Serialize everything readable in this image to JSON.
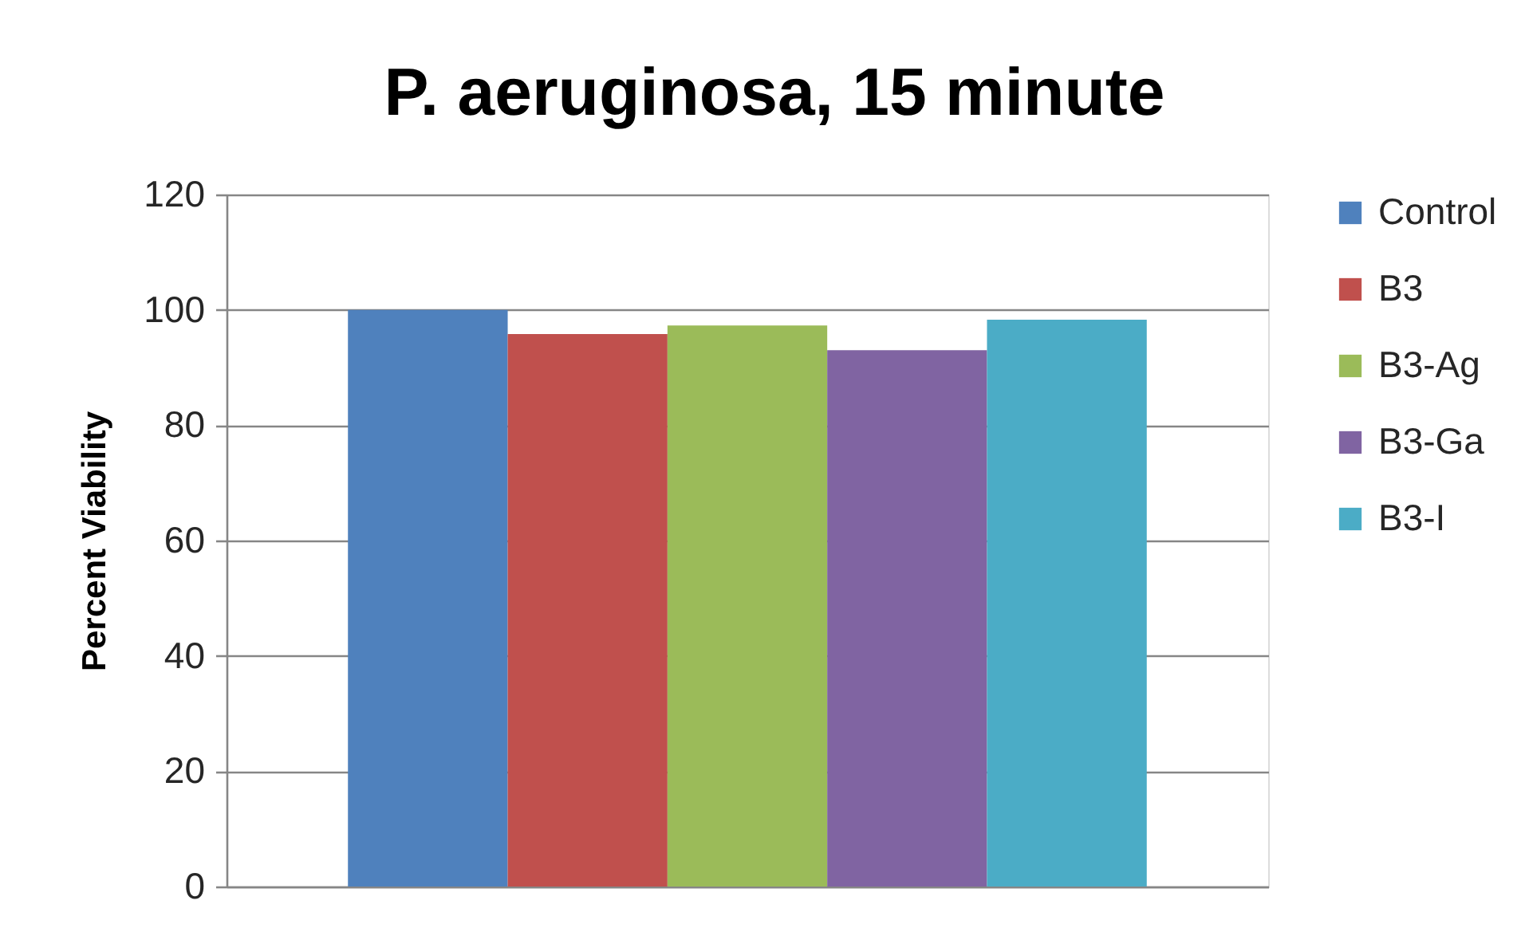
{
  "chart_data": {
    "type": "bar",
    "title": "P. aeruginosa, 15 minute",
    "ylabel": "Percent Viability",
    "categories": [
      null
    ],
    "series": [
      {
        "name": "Control",
        "color": "#4f81bd",
        "values": [
          100
        ]
      },
      {
        "name": "B3",
        "color": "#c0504d",
        "values": [
          95.8
        ]
      },
      {
        "name": "B3-Ag",
        "color": "#9bbb59",
        "values": [
          97.3
        ]
      },
      {
        "name": "B3-Ga",
        "color": "#8064a2",
        "values": [
          93.0
        ]
      },
      {
        "name": "B3-I",
        "color": "#4bacc6",
        "values": [
          98.3
        ]
      }
    ],
    "ylim": [
      0,
      120
    ],
    "yticks": [
      0,
      20,
      40,
      60,
      80,
      100,
      120
    ],
    "grid": "y",
    "legend": "right"
  }
}
